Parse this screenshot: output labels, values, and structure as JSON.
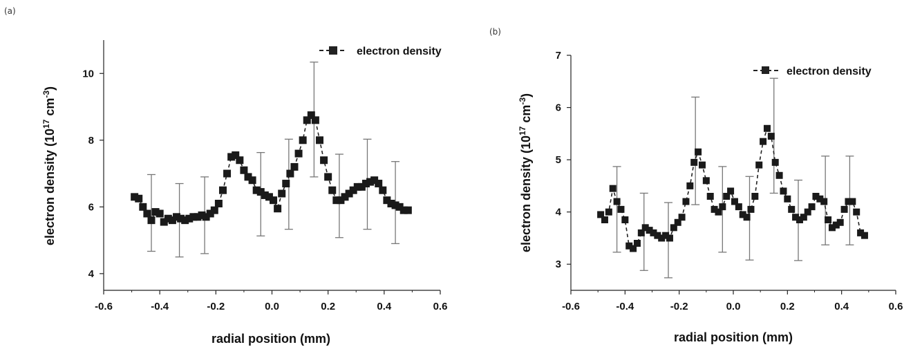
{
  "chart_data": [
    {
      "type": "scatter",
      "panel_label": "(a)",
      "xlabel": "radial position (mm)",
      "ylabel_text": "electron density (10",
      "ylabel_exp1": "17",
      "ylabel_mid": " cm",
      "ylabel_exp2": "-3",
      "ylabel_close": ")",
      "xlim": [
        -0.6,
        0.6
      ],
      "ylim": [
        3.5,
        11
      ],
      "xticks": [
        -0.6,
        -0.4,
        -0.2,
        0.0,
        0.2,
        0.4,
        0.6
      ],
      "xtick_labels": [
        "-0.6",
        "-0.4",
        "-0.2",
        "0.0",
        "0.2",
        "0.4",
        "0.6"
      ],
      "yticks": [
        4,
        6,
        8,
        10
      ],
      "ytick_labels": [
        "4",
        "6",
        "8",
        "10"
      ],
      "grid": false,
      "legend": "top-right",
      "series": [
        {
          "name": "electron density",
          "marker": "square",
          "line": "dashed",
          "x": [
            -0.49,
            -0.475,
            -0.46,
            -0.445,
            -0.43,
            -0.415,
            -0.4,
            -0.385,
            -0.37,
            -0.355,
            -0.34,
            -0.325,
            -0.31,
            -0.295,
            -0.28,
            -0.265,
            -0.25,
            -0.235,
            -0.22,
            -0.205,
            -0.19,
            -0.175,
            -0.16,
            -0.145,
            -0.13,
            -0.115,
            -0.1,
            -0.085,
            -0.07,
            -0.055,
            -0.04,
            -0.025,
            -0.01,
            0.005,
            0.02,
            0.035,
            0.05,
            0.065,
            0.08,
            0.095,
            0.11,
            0.125,
            0.14,
            0.155,
            0.17,
            0.185,
            0.2,
            0.215,
            0.23,
            0.245,
            0.26,
            0.275,
            0.29,
            0.305,
            0.32,
            0.335,
            0.35,
            0.365,
            0.38,
            0.395,
            0.41,
            0.425,
            0.44,
            0.455,
            0.47,
            0.485
          ],
          "y": [
            6.3,
            6.25,
            6.0,
            5.8,
            5.6,
            5.85,
            5.8,
            5.55,
            5.65,
            5.6,
            5.7,
            5.65,
            5.6,
            5.65,
            5.7,
            5.7,
            5.75,
            5.7,
            5.8,
            5.9,
            6.1,
            6.5,
            7.0,
            7.5,
            7.55,
            7.4,
            7.1,
            6.9,
            6.8,
            6.5,
            6.45,
            6.35,
            6.3,
            6.2,
            5.95,
            6.4,
            6.7,
            7.0,
            7.2,
            7.6,
            8.0,
            8.6,
            8.75,
            8.6,
            8.0,
            7.4,
            6.9,
            6.5,
            6.2,
            6.2,
            6.3,
            6.4,
            6.5,
            6.6,
            6.6,
            6.7,
            6.75,
            6.8,
            6.7,
            6.5,
            6.2,
            6.1,
            6.05,
            6.0,
            5.9,
            5.9
          ],
          "error_x": [
            -0.43,
            -0.33,
            -0.24,
            -0.04,
            0.06,
            0.15,
            0.24,
            0.34,
            0.44
          ],
          "error_y": [
            5.82,
            5.6,
            5.75,
            6.38,
            6.68,
            8.62,
            6.33,
            6.68,
            6.13
          ],
          "error_minus": [
            1.15,
            1.1,
            1.15,
            1.25,
            1.35,
            1.72,
            1.25,
            1.35,
            1.23
          ],
          "error_plus": [
            1.15,
            1.1,
            1.15,
            1.25,
            1.35,
            1.72,
            1.25,
            1.35,
            1.23
          ]
        }
      ]
    },
    {
      "type": "scatter",
      "panel_label": "(b)",
      "xlabel": "radial position (mm)",
      "ylabel_text": "electron density (10",
      "ylabel_exp1": "17",
      "ylabel_mid": " cm",
      "ylabel_exp2": "-3",
      "ylabel_close": ")",
      "xlim": [
        -0.6,
        0.6
      ],
      "ylim": [
        2.5,
        7
      ],
      "xticks": [
        -0.6,
        -0.4,
        -0.2,
        0.0,
        0.2,
        0.4,
        0.6
      ],
      "xtick_labels": [
        "-0.6",
        "-0.4",
        "-0.2",
        "0.0",
        "0.2",
        "0.4",
        "0.6"
      ],
      "yticks": [
        3,
        4,
        5,
        6,
        7
      ],
      "ytick_labels": [
        "3",
        "4",
        "5",
        "6",
        "7"
      ],
      "grid": false,
      "legend": "top-right",
      "series": [
        {
          "name": "electron density",
          "marker": "square",
          "line": "dashed",
          "x": [
            -0.49,
            -0.475,
            -0.46,
            -0.445,
            -0.43,
            -0.415,
            -0.4,
            -0.385,
            -0.37,
            -0.355,
            -0.34,
            -0.325,
            -0.31,
            -0.295,
            -0.28,
            -0.265,
            -0.25,
            -0.235,
            -0.22,
            -0.205,
            -0.19,
            -0.175,
            -0.16,
            -0.145,
            -0.13,
            -0.115,
            -0.1,
            -0.085,
            -0.07,
            -0.055,
            -0.04,
            -0.025,
            -0.01,
            0.005,
            0.02,
            0.035,
            0.05,
            0.065,
            0.08,
            0.095,
            0.11,
            0.125,
            0.14,
            0.155,
            0.17,
            0.185,
            0.2,
            0.215,
            0.23,
            0.245,
            0.26,
            0.275,
            0.29,
            0.305,
            0.32,
            0.335,
            0.35,
            0.365,
            0.38,
            0.395,
            0.41,
            0.425,
            0.44,
            0.455,
            0.47,
            0.485
          ],
          "y": [
            3.95,
            3.85,
            4.0,
            4.45,
            4.2,
            4.05,
            3.85,
            3.35,
            3.3,
            3.4,
            3.6,
            3.7,
            3.65,
            3.6,
            3.55,
            3.5,
            3.55,
            3.5,
            3.7,
            3.8,
            3.9,
            4.2,
            4.5,
            4.95,
            5.15,
            4.9,
            4.6,
            4.3,
            4.05,
            4.0,
            4.1,
            4.3,
            4.4,
            4.2,
            4.1,
            3.95,
            3.9,
            4.05,
            4.3,
            4.9,
            5.35,
            5.6,
            5.45,
            4.95,
            4.7,
            4.4,
            4.25,
            4.05,
            3.9,
            3.85,
            3.9,
            4.0,
            4.1,
            4.3,
            4.25,
            4.2,
            3.85,
            3.7,
            3.75,
            3.8,
            4.05,
            4.2,
            4.2,
            4.0,
            3.6,
            3.55
          ],
          "error_x": [
            -0.43,
            -0.33,
            -0.24,
            -0.14,
            -0.04,
            0.06,
            0.15,
            0.24,
            0.34,
            0.43
          ],
          "error_y": [
            4.05,
            3.62,
            3.46,
            5.17,
            4.05,
            3.88,
            5.46,
            3.84,
            4.22,
            4.22
          ],
          "error_minus": [
            0.82,
            0.74,
            0.72,
            1.03,
            0.82,
            0.8,
            1.1,
            0.77,
            0.85,
            0.85
          ],
          "error_plus": [
            0.82,
            0.74,
            0.72,
            1.03,
            0.82,
            0.8,
            1.1,
            0.77,
            0.85,
            0.85
          ]
        }
      ]
    }
  ]
}
